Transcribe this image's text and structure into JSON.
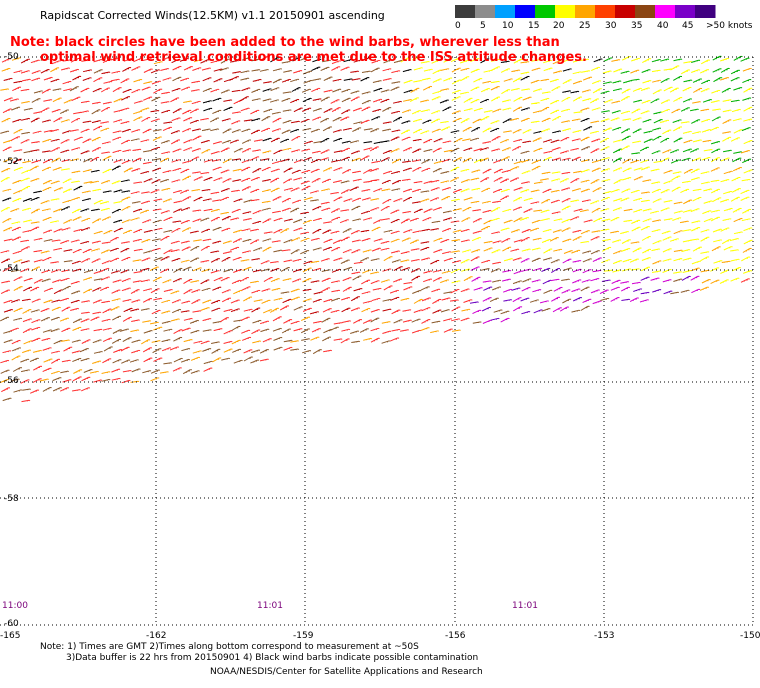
{
  "header": {
    "title": "Rapidscat Corrected Winds(12.5KM) v1.1 20150901 ascending"
  },
  "note": {
    "line1": "Note: black circles have been added to the wind barbs, wherever less than",
    "line2": "optimal wind retrieval conditions are met due to the ISS attitude changes."
  },
  "legend": {
    "labels": [
      "0",
      "5",
      "10",
      "15",
      "20",
      "25",
      "30",
      "35",
      "40",
      "45",
      ">50 knots"
    ],
    "colors": [
      "#3c3c3c",
      "#8c8c8c",
      "#00a0ff",
      "#0000ff",
      "#00c800",
      "#ffff00",
      "#ffa500",
      "#ff4000",
      "#c80000",
      "#8b4513",
      "#ff00ff",
      "#7a00c8",
      "#400080"
    ]
  },
  "map": {
    "lat_labels": [
      "-50",
      "-52",
      "-54",
      "-56",
      "-58",
      "-60"
    ],
    "lon_labels": [
      "-165",
      "-162",
      "-159",
      "-156",
      "-153",
      "-150"
    ],
    "times": [
      "11:00",
      "11:01",
      "11:01"
    ],
    "wind_colors": {
      "low": "#000000",
      "green": "#00b000",
      "yellow": "#ffff00",
      "orange": "#ffa500",
      "red": "#ff3030",
      "darkred": "#c00000",
      "brown": "#8b5a2b",
      "magenta": "#d000d0",
      "purple": "#6a00c0"
    }
  },
  "footer": {
    "line1": "Note: 1) Times are GMT 2)Times along bottom correspond to measurement at ~50S",
    "line2": "3)Data buffer is 22 hrs from 20150901 4) Black wind barbs indicate possible contamination",
    "credit": "NOAA/NESDIS/Center for Satellite Applications and Research"
  }
}
